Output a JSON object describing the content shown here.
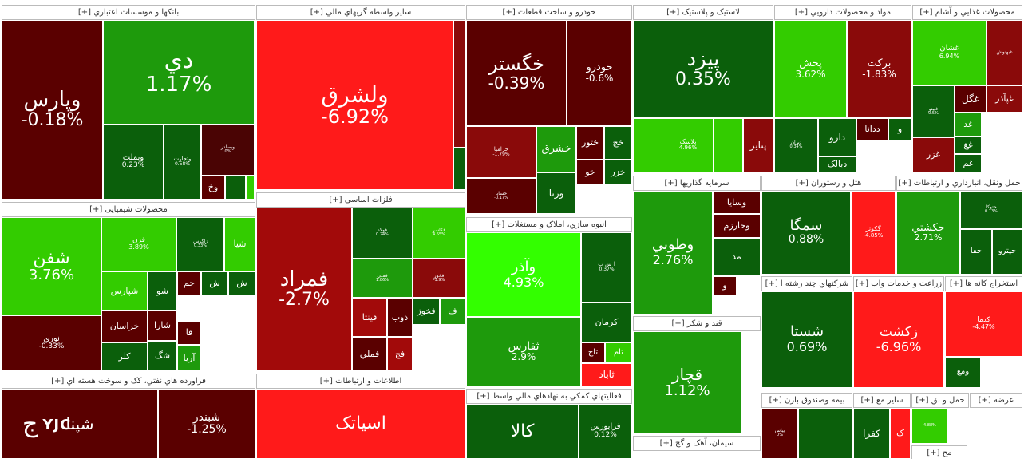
{
  "chart_data": {
    "type": "treemap",
    "title": "",
    "colors": {
      "strong_pos": "#33cc00",
      "mid_pos": "#1e9a0c",
      "weak_pos": "#0b5f0b",
      "weak_neg": "#5a0000",
      "mid_neg": "#8a0a0a",
      "strong_neg": "#ff1a1a"
    },
    "sectors": [
      {
        "name": "بانکها و موسسات اعتباري [+]",
        "tiles": [
          {
            "symbol": "وپارس",
            "change": "-0.18%",
            "color": "#5a0000"
          },
          {
            "symbol": "دي",
            "change": "1.17%",
            "color": "#1e9a0c"
          },
          {
            "symbol": "وبملت",
            "change": "0.23%",
            "color": "#0b5f0b"
          },
          {
            "symbol": "وتجارت",
            "change": "0.58%",
            "color": "#0b5f0b"
          },
          {
            "symbol": "وبصادر",
            "change": "0%",
            "color": "#4a0404"
          },
          {
            "symbol": "وخ",
            "change": "",
            "color": "#5a0000"
          },
          {
            "symbol": "",
            "change": "",
            "color": "#0b5f0b"
          },
          {
            "symbol": "",
            "change": "",
            "color": "#33cc00"
          }
        ]
      },
      {
        "name": "سایر واسطه گريهاي مالي [+]",
        "tiles": [
          {
            "symbol": "ولشرق",
            "change": "-6.92%",
            "color": "#ff1a1a"
          },
          {
            "symbol": "",
            "change": "",
            "color": "#8a0a0a"
          },
          {
            "symbol": "",
            "change": "",
            "color": "#0b5f0b"
          }
        ]
      },
      {
        "name": "خودرو و ساخت قطعات [+]",
        "tiles": [
          {
            "symbol": "خگستر",
            "change": "-0.39%",
            "color": "#5a0000"
          },
          {
            "symbol": "خودرو",
            "change": "-0.6%",
            "color": "#5a0000"
          },
          {
            "symbol": "خزامیا",
            "change": "-1.79%",
            "color": "#8a0a0a"
          },
          {
            "symbol": "خشرق",
            "change": "",
            "color": "#1e9a0c"
          },
          {
            "symbol": "ختور",
            "change": "",
            "color": "#5a0000"
          },
          {
            "symbol": "خج",
            "change": "",
            "color": "#0b5f0b"
          },
          {
            "symbol": "خساپا",
            "change": "-0.17%",
            "color": "#5a0000"
          },
          {
            "symbol": "ورنا",
            "change": "",
            "color": "#0b5f0b"
          },
          {
            "symbol": "خو",
            "change": "",
            "color": "#5a0000"
          },
          {
            "symbol": "خزر",
            "change": "",
            "color": "#0b5f0b"
          }
        ]
      },
      {
        "name": "لاستیک و پلاستیک [+]",
        "tiles": [
          {
            "symbol": "پیزد",
            "change": "0.35%",
            "color": "#0b5f0b"
          },
          {
            "symbol": "پلاسک",
            "change": "4.96%",
            "color": "#33cc00"
          },
          {
            "symbol": "پتایر",
            "change": "",
            "color": "#8a0a0a"
          },
          {
            "symbol": "",
            "change": "",
            "color": "#33cc00"
          }
        ]
      },
      {
        "name": "مواد و محصولات دارويي [+]",
        "tiles": [
          {
            "symbol": "پخش",
            "change": "3.62%",
            "color": "#33cc00"
          },
          {
            "symbol": "برکت",
            "change": "-1.83%",
            "color": "#8a0a0a"
          },
          {
            "symbol": "دارو",
            "change": "",
            "color": "#0b5f0b"
          },
          {
            "symbol": "ددانا",
            "change": "",
            "color": "#5a0000"
          },
          {
            "symbol": "دبالک",
            "change": "",
            "color": "#0b5f0b"
          },
          {
            "symbol": "ديران",
            "change": "0.34%",
            "color": "#0b5f0b"
          },
          {
            "symbol": "و",
            "change": "",
            "color": "#0b5f0b"
          }
        ]
      },
      {
        "name": "محصولات غذايي و آشام [+]",
        "tiles": [
          {
            "symbol": "غشان",
            "change": "6.94%",
            "color": "#33cc00"
          },
          {
            "symbol": "غبهنوش",
            "change": "",
            "color": "#8a0a0a"
          },
          {
            "symbol": "غپینو",
            "change": "0.5%",
            "color": "#0b5f0b"
          },
          {
            "symbol": "غگل",
            "change": "",
            "color": "#5a0000"
          },
          {
            "symbol": "غپآذر",
            "change": "",
            "color": "#8a0a0a"
          },
          {
            "symbol": "غد",
            "change": "",
            "color": "#1e9a0c"
          },
          {
            "symbol": "غزر",
            "change": "",
            "color": "#8a0a0a"
          },
          {
            "symbol": "غغ",
            "change": "",
            "color": "#0b5f0b"
          },
          {
            "symbol": "غم",
            "change": "",
            "color": "#0b5f0b"
          }
        ]
      },
      {
        "name": "محصولات شیمیایی [+]",
        "tiles": [
          {
            "symbol": "شفن",
            "change": "3.76%",
            "color": "#33cc00"
          },
          {
            "symbol": "قرن",
            "change": "3.89%",
            "color": "#33cc00"
          },
          {
            "symbol": "زاگرس",
            "change": "0.33%",
            "color": "#0b5f0b"
          },
          {
            "symbol": "شیا",
            "change": "",
            "color": "#33cc00"
          },
          {
            "symbol": "شپارس",
            "change": "",
            "color": "#33cc00"
          },
          {
            "symbol": "شو",
            "change": "",
            "color": "#0b5f0b"
          },
          {
            "symbol": "جم",
            "change": "",
            "color": "#5a0000"
          },
          {
            "symbol": "ش",
            "change": "",
            "color": "#0b5f0b"
          },
          {
            "symbol": "ش",
            "change": "",
            "color": "#0b5f0b"
          },
          {
            "symbol": "نوري",
            "change": "-0.33%",
            "color": "#5a0000"
          },
          {
            "symbol": "خراسان",
            "change": "",
            "color": "#5a0000"
          },
          {
            "symbol": "شارا",
            "change": "",
            "color": "#5a0000"
          },
          {
            "symbol": "فا",
            "change": "",
            "color": "#5a0000"
          },
          {
            "symbol": "کلر",
            "change": "",
            "color": "#0b5f0b"
          },
          {
            "symbol": "شگ",
            "change": "",
            "color": "#0b5f0b"
          },
          {
            "symbol": "آريا",
            "change": "",
            "color": "#1e9a0c"
          }
        ]
      },
      {
        "name": "فلزات اساسی [+]",
        "tiles": [
          {
            "symbol": "فمراد",
            "change": "-2.7%",
            "color": "#a20a0a"
          },
          {
            "symbol": "فولاد",
            "change": "0.24%",
            "color": "#0b5f0b"
          },
          {
            "symbol": "فکاسر",
            "change": "4.55%",
            "color": "#33cc00"
          },
          {
            "symbol": "فملي",
            "change": "1.86%",
            "color": "#1e9a0c"
          },
          {
            "symbol": "فخوز",
            "change": "-1.9%",
            "color": "#8a0a0a"
          },
          {
            "symbol": "فینتا",
            "change": "",
            "color": "#a20a0a"
          },
          {
            "symbol": "ذوب",
            "change": "",
            "color": "#5a0000"
          },
          {
            "symbol": "فخوز",
            "change": "",
            "color": "#0b5f0b"
          },
          {
            "symbol": "ف",
            "change": "",
            "color": "#1e9a0c"
          },
          {
            "symbol": "فملي",
            "change": "",
            "color": "#5a0000"
          },
          {
            "symbol": "فج",
            "change": "",
            "color": "#a20a0a"
          }
        ]
      },
      {
        "name": "انبوه سازي، املاک و مستغلات [+]",
        "tiles": [
          {
            "symbol": "وآذر",
            "change": "4.93%",
            "color": "#33ff00"
          },
          {
            "symbol": "ثفارس",
            "change": "2.9%",
            "color": "#1e9a0c"
          },
          {
            "symbol": "ا س پ",
            "change": "0.37%",
            "color": "#0b5f0b"
          },
          {
            "symbol": "کرمان",
            "change": "",
            "color": "#0b5f0b"
          },
          {
            "symbol": "تاج",
            "change": "",
            "color": "#5a0000"
          },
          {
            "symbol": "تام",
            "change": "",
            "color": "#33cc00"
          },
          {
            "symbol": "ثاباد",
            "change": "",
            "color": "#ff1a1a"
          }
        ]
      },
      {
        "name": "قند و شکر [+]",
        "tiles": [
          {
            "symbol": "قچار",
            "change": "1.12%",
            "color": "#1e9a0c"
          }
        ]
      },
      {
        "name": "سرمايه گذاريها [+]",
        "tiles": [
          {
            "symbol": "وطوبي",
            "change": "2.76%",
            "color": "#1e9a0c"
          },
          {
            "symbol": "وسايا",
            "change": "",
            "color": "#5a0000"
          },
          {
            "symbol": "وخارزم",
            "change": "",
            "color": "#5a0000"
          },
          {
            "symbol": "مد",
            "change": "",
            "color": "#0b5f0b"
          },
          {
            "symbol": "و",
            "change": "",
            "color": "#5a0000"
          }
        ]
      },
      {
        "name": "هتل و رستوران [+]",
        "tiles": [
          {
            "symbol": "سمگا",
            "change": "0.88%",
            "color": "#0b5f0b"
          },
          {
            "symbol": "گکوثر",
            "change": "-4.85%",
            "color": "#ff1a1a"
          }
        ]
      },
      {
        "name": "حمل ونقل، انبارداري و ارتباطات [+]",
        "tiles": [
          {
            "symbol": "حکشتي",
            "change": "2.71%",
            "color": "#1e9a0c"
          },
          {
            "symbol": "حتوکا",
            "change": "0.13%",
            "color": "#0b5f0b"
          },
          {
            "symbol": "حفا",
            "change": "",
            "color": "#0b5f0b"
          },
          {
            "symbol": "حپترو",
            "change": "",
            "color": "#0b5f0b"
          }
        ]
      },
      {
        "name": "شرکتهاي چند رشته ا [+]",
        "tiles": [
          {
            "symbol": "شستا",
            "change": "0.69%",
            "color": "#0b5f0b"
          }
        ]
      },
      {
        "name": "زراعت و خدمات واب [+]",
        "tiles": [
          {
            "symbol": "زکشت",
            "change": "-6.96%",
            "color": "#ff1a1a"
          }
        ]
      },
      {
        "name": "استخراج کانه ها [+]",
        "tiles": [
          {
            "symbol": "کدما",
            "change": "-4.47%",
            "color": "#ff1a1a"
          },
          {
            "symbol": "ومع",
            "change": "",
            "color": "#0b5f0b"
          }
        ]
      },
      {
        "name": "فراورده هاي نفتي، کک و سوخت هسته اي [+]",
        "tiles": [
          {
            "symbol": "شپنا",
            "change": "",
            "color": "#5a0000"
          },
          {
            "symbol": "شبندر",
            "change": "-1.25%",
            "color": "#5a0000"
          }
        ]
      },
      {
        "name": "اطلاعات و ارتباطات [+]",
        "tiles": [
          {
            "symbol": "اسیاتک",
            "change": "",
            "color": "#ff1a1a"
          }
        ]
      },
      {
        "name": "فعاليتهاي کمکي به نهادهاي مالي واسط [+]",
        "tiles": [
          {
            "symbol": "کالا",
            "change": "",
            "color": "#0b5f0b"
          },
          {
            "symbol": "فرابورس",
            "change": "0.12%",
            "color": "#0b5f0b"
          }
        ]
      },
      {
        "name": "سیمان، آهک و گچ [+]",
        "tiles": []
      },
      {
        "name": "بیمه وصندوق بازن [+]",
        "tiles": [
          {
            "symbol": "بپاس",
            "change": "0%",
            "color": "#5a0000"
          },
          {
            "symbol": "",
            "change": "",
            "color": "#0b5f0b"
          }
        ]
      },
      {
        "name": "سایر مع [+]",
        "tiles": [
          {
            "symbol": "کفرا",
            "change": "",
            "color": "#0b5f0b"
          },
          {
            "symbol": "ک",
            "change": "",
            "color": "#ff1a1a"
          }
        ]
      },
      {
        "name": "حمل و نق [+]",
        "tiles": [
          {
            "symbol": "",
            "change": "4.88%",
            "color": "#33cc00"
          }
        ]
      },
      {
        "name": "عرضه [+]",
        "tiles": []
      },
      {
        "name": "مح [+]",
        "tiles": []
      }
    ]
  },
  "watermark": {
    "text": "YJC",
    "mark": "ج"
  }
}
